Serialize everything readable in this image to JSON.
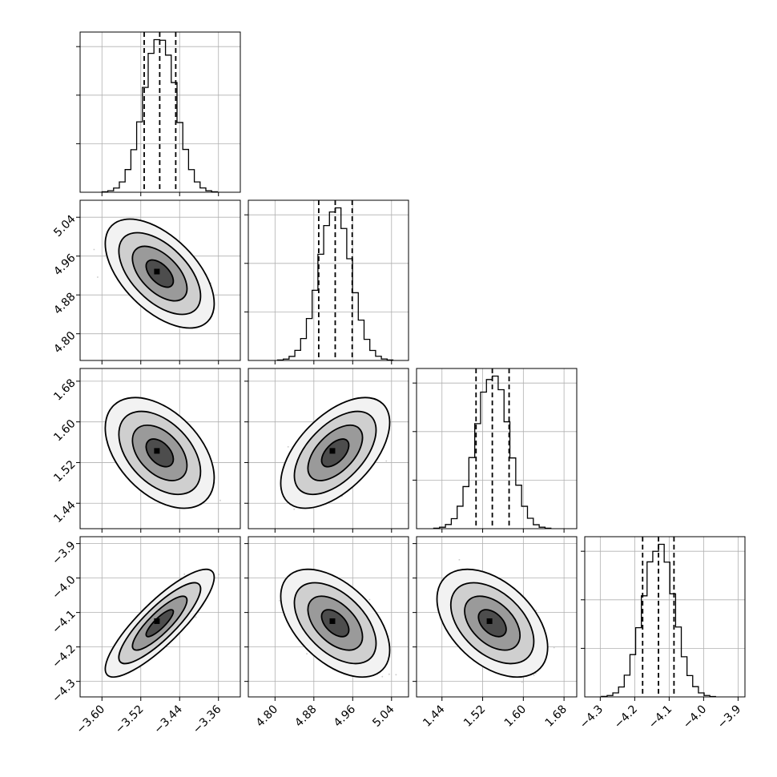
{
  "chart_data": {
    "type": "corner",
    "title": "",
    "parameters": [
      {
        "label": "",
        "range": [
          -3.645,
          -3.315
        ],
        "ticks": [
          "−3.60",
          "−3.52",
          "−3.44",
          "−3.36"
        ],
        "tick_values": [
          -3.6,
          -3.52,
          -3.44,
          -3.36
        ],
        "mean": -3.481,
        "std": 0.033,
        "quantiles": [
          -3.513,
          -3.481,
          -3.448
        ]
      },
      {
        "label": "",
        "range": [
          4.745,
          5.075
        ],
        "ticks": [
          "4.80",
          "4.88",
          "4.96",
          "5.04"
        ],
        "tick_values": [
          4.8,
          4.88,
          4.96,
          5.04
        ],
        "mean": 4.924,
        "std": 0.033,
        "quantiles": [
          4.89,
          4.924,
          4.959
        ]
      },
      {
        "label": "",
        "range": [
          1.39,
          1.705
        ],
        "ticks": [
          "1.44",
          "1.52",
          "1.60",
          "1.68"
        ],
        "tick_values": [
          1.44,
          1.52,
          1.6,
          1.68
        ],
        "mean": 1.539,
        "std": 0.032,
        "quantiles": [
          1.507,
          1.539,
          1.572
        ]
      },
      {
        "label": "",
        "range": [
          -4.345,
          -3.88
        ],
        "ticks": [
          "−4.3",
          "−4.2",
          "−4.1",
          "−4.0",
          "−3.9"
        ],
        "tick_values": [
          -4.3,
          -4.2,
          -4.1,
          -4.0,
          -3.9
        ],
        "mean": -4.131,
        "std": 0.046,
        "quantiles": [
          -4.177,
          -4.131,
          -4.086
        ]
      }
    ],
    "correlations": [
      {
        "pair": [
          0,
          1
        ],
        "rho": -0.55
      },
      {
        "pair": [
          0,
          2
        ],
        "rho": -0.45
      },
      {
        "pair": [
          1,
          2
        ],
        "rho": 0.55
      },
      {
        "pair": [
          0,
          3
        ],
        "rho": 0.85
      },
      {
        "pair": [
          1,
          3
        ],
        "rho": -0.5
      },
      {
        "pair": [
          2,
          3
        ],
        "rho": -0.45
      }
    ],
    "histogram_bins": 20,
    "contour_levels_sigma": [
      0.5,
      1.0,
      1.5,
      2.0
    ],
    "grid": true,
    "histogram_y_ticks": 3
  }
}
